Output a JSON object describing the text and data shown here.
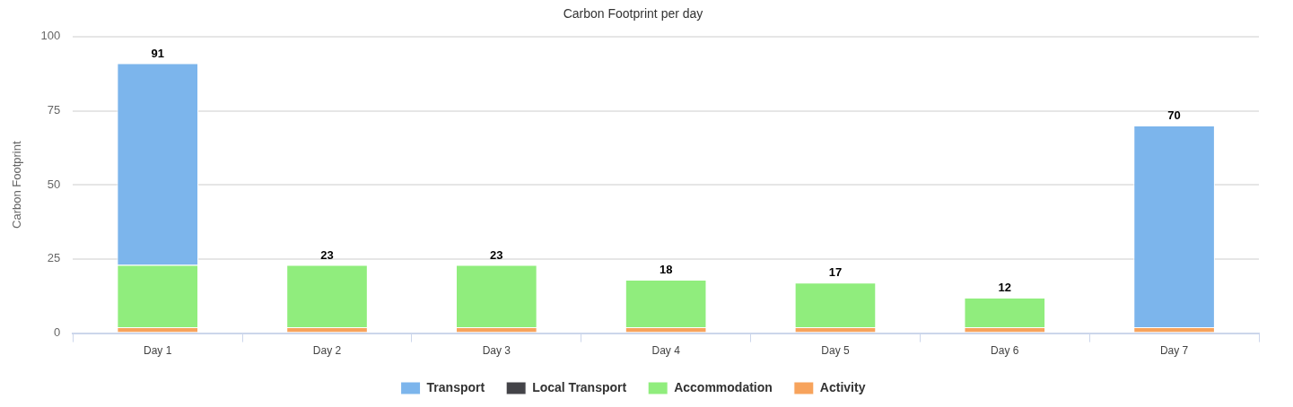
{
  "chart_data": {
    "type": "bar",
    "title": "Carbon Footprint per day",
    "ylabel": "Carbon Footprint",
    "categories": [
      "Day 1",
      "Day 2",
      "Day 3",
      "Day 4",
      "Day 5",
      "Day 6",
      "Day 7"
    ],
    "stacked": true,
    "series": [
      {
        "name": "Activity",
        "color": "#f7a35c",
        "values": [
          2,
          2,
          2,
          2,
          2,
          2,
          2
        ]
      },
      {
        "name": "Accommodation",
        "color": "#90ed7d",
        "values": [
          21,
          21,
          21,
          16,
          15,
          10,
          0
        ]
      },
      {
        "name": "Local Transport",
        "color": "#434348",
        "values": [
          0,
          0,
          0,
          0,
          0,
          0,
          0
        ]
      },
      {
        "name": "Transport",
        "color": "#7cb5ec",
        "values": [
          68,
          0,
          0,
          0,
          0,
          0,
          68
        ]
      }
    ],
    "totals": [
      "91",
      "23",
      "23",
      "18",
      "17",
      "12",
      "70"
    ],
    "ylim": [
      0,
      100
    ],
    "yticks": [
      0,
      25,
      50,
      75,
      100
    ],
    "grid": "y",
    "legend": "bottom"
  }
}
